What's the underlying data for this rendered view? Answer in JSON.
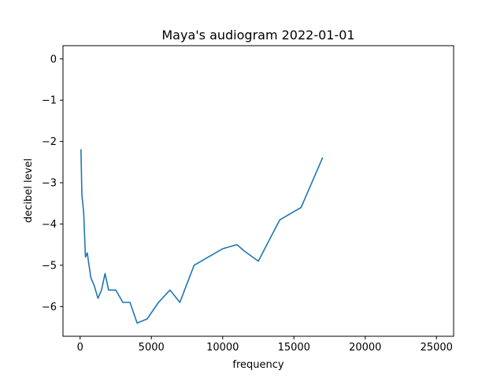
{
  "chart_data": {
    "type": "line",
    "title": "Maya's audiogram 2022-01-01",
    "xlabel": "frequency",
    "ylabel": "decibel level",
    "xlim": [
      -1200,
      26200
    ],
    "ylim": [
      -6.72,
      0.32
    ],
    "xticks": [
      0,
      5000,
      10000,
      15000,
      20000,
      25000
    ],
    "xtick_labels": [
      "0",
      "5000",
      "10000",
      "15000",
      "20000",
      "25000"
    ],
    "yticks": [
      0,
      -1,
      -2,
      -3,
      -4,
      -5,
      -6
    ],
    "ytick_labels": [
      "0",
      "−1",
      "−2",
      "−3",
      "−4",
      "−5",
      "−6"
    ],
    "grid": false,
    "series": [
      {
        "color": "#1f77b4",
        "x": [
          60,
          125,
          250,
          375,
          500,
          750,
          1000,
          1250,
          1500,
          1750,
          2000,
          2500,
          3000,
          3500,
          4000,
          4700,
          5500,
          6300,
          7000,
          8000,
          10000,
          11000,
          11500,
          12500,
          14000,
          15500,
          17000
        ],
        "y": [
          -2.2,
          -3.3,
          -3.7,
          -4.8,
          -4.7,
          -5.3,
          -5.5,
          -5.8,
          -5.6,
          -5.2,
          -5.6,
          -5.6,
          -5.9,
          -5.9,
          -6.4,
          -6.3,
          -5.9,
          -5.6,
          -5.9,
          -5.0,
          -4.6,
          -4.5,
          -4.65,
          -4.9,
          -3.9,
          -3.6,
          -2.4
        ]
      }
    ]
  }
}
